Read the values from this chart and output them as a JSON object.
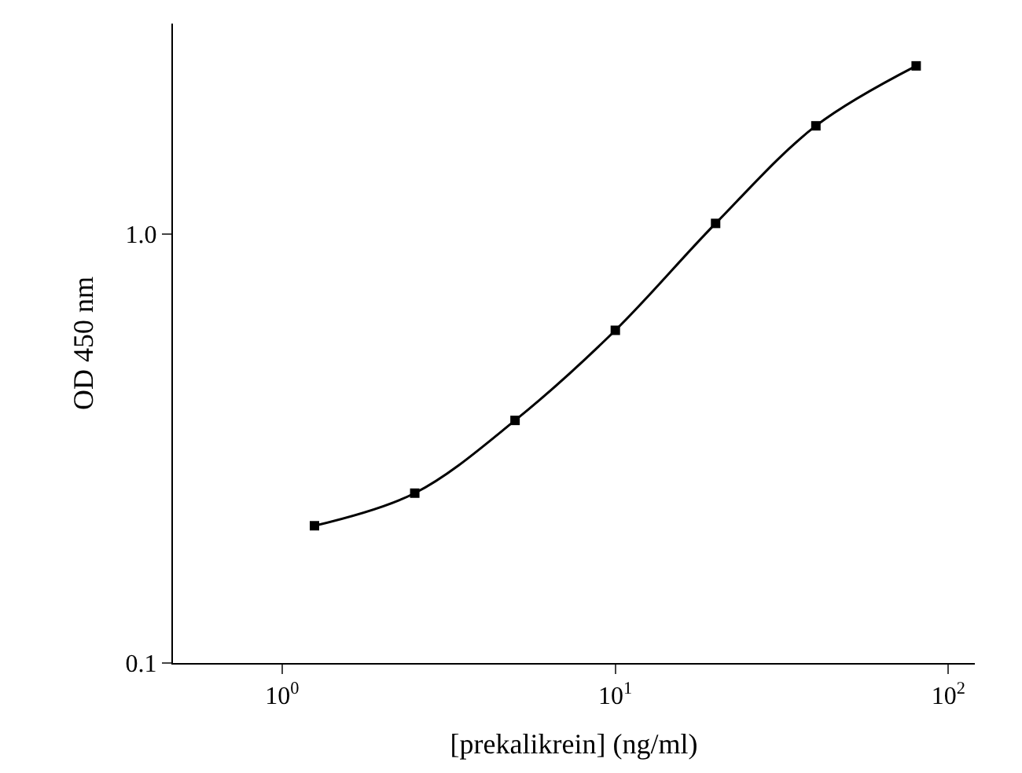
{
  "chart_data": {
    "type": "line",
    "xlabel": "[prekalikrein] (ng/ml)",
    "ylabel": "OD 450 nm",
    "x": [
      1.25,
      2.5,
      5,
      10,
      20,
      40,
      80
    ],
    "series": [
      {
        "color": "#000000",
        "values": [
          0.209,
          0.249,
          0.368,
          0.597,
          1.06,
          1.79,
          2.47
        ]
      }
    ],
    "log": "xy",
    "marker": "square",
    "line_style": "solid",
    "xlim": [
      0.47,
      120
    ],
    "ylim": [
      0.1,
      3.1
    ],
    "xticks": [
      {
        "value": 1,
        "label": "10$^{0}$"
      },
      {
        "value": 10,
        "label": "10$^{1}$"
      },
      {
        "value": 100,
        "label": "10$^{2}$"
      }
    ],
    "yticks": [
      0.1,
      {
        "value": 1,
        "label": "1.0"
      }
    ]
  }
}
